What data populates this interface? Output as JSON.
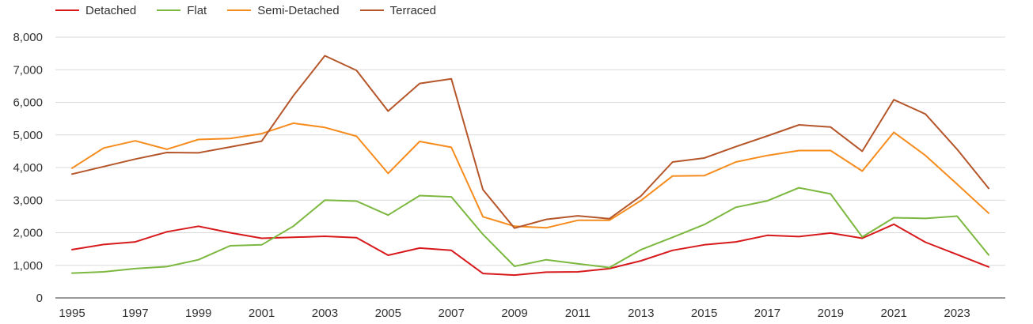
{
  "chart_data": {
    "type": "line",
    "title": "",
    "xlabel": "",
    "ylabel": "",
    "x": [
      1995,
      1996,
      1997,
      1998,
      1999,
      2000,
      2001,
      2002,
      2003,
      2004,
      2005,
      2006,
      2007,
      2008,
      2009,
      2010,
      2011,
      2012,
      2013,
      2014,
      2015,
      2016,
      2017,
      2018,
      2019,
      2020,
      2021,
      2022,
      2023,
      2024
    ],
    "x_tick_labels": [
      "1995",
      "1997",
      "1999",
      "2001",
      "2003",
      "2005",
      "2007",
      "2009",
      "2011",
      "2013",
      "2015",
      "2017",
      "2019",
      "2021",
      "2023"
    ],
    "y_tick_labels": [
      "0",
      "1,000",
      "2,000",
      "3,000",
      "4,000",
      "5,000",
      "6,000",
      "7,000",
      "8,000"
    ],
    "ylim": [
      0,
      8000
    ],
    "grid": "horizontal",
    "legend_position": "top-left",
    "series": [
      {
        "name": "Detached",
        "color": "#d7191c",
        "values": [
          1480,
          1640,
          1720,
          2030,
          2200,
          2000,
          1830,
          1860,
          1890,
          1850,
          1310,
          1530,
          1460,
          750,
          700,
          790,
          800,
          900,
          1140,
          1460,
          1630,
          1720,
          1920,
          1880,
          1990,
          1830,
          2260,
          1710,
          1330,
          950
        ]
      },
      {
        "name": "Flat",
        "color": "#7cb83f",
        "values": [
          760,
          800,
          900,
          960,
          1170,
          1600,
          1630,
          2200,
          3000,
          2970,
          2540,
          3140,
          3100,
          1950,
          970,
          1170,
          1050,
          930,
          1480,
          1860,
          2250,
          2780,
          2980,
          3380,
          3190,
          1870,
          2460,
          2440,
          2510,
          1320
        ]
      },
      {
        "name": "Semi-Detached",
        "color": "#f58c1d",
        "values": [
          3980,
          4600,
          4820,
          4560,
          4860,
          4890,
          5040,
          5360,
          5230,
          4960,
          3820,
          4800,
          4620,
          2490,
          2200,
          2150,
          2380,
          2380,
          2990,
          3740,
          3750,
          4170,
          4370,
          4520,
          4520,
          3890,
          5080,
          4370,
          3490,
          2600
        ]
      },
      {
        "name": "Terraced",
        "color": "#b5562a",
        "values": [
          3800,
          4030,
          4260,
          4460,
          4450,
          4630,
          4810,
          6200,
          7430,
          6980,
          5730,
          6580,
          6720,
          3320,
          2140,
          2410,
          2520,
          2430,
          3130,
          4170,
          4290,
          4640,
          4970,
          5310,
          5240,
          4500,
          6080,
          5640,
          4560,
          3360
        ]
      }
    ]
  }
}
